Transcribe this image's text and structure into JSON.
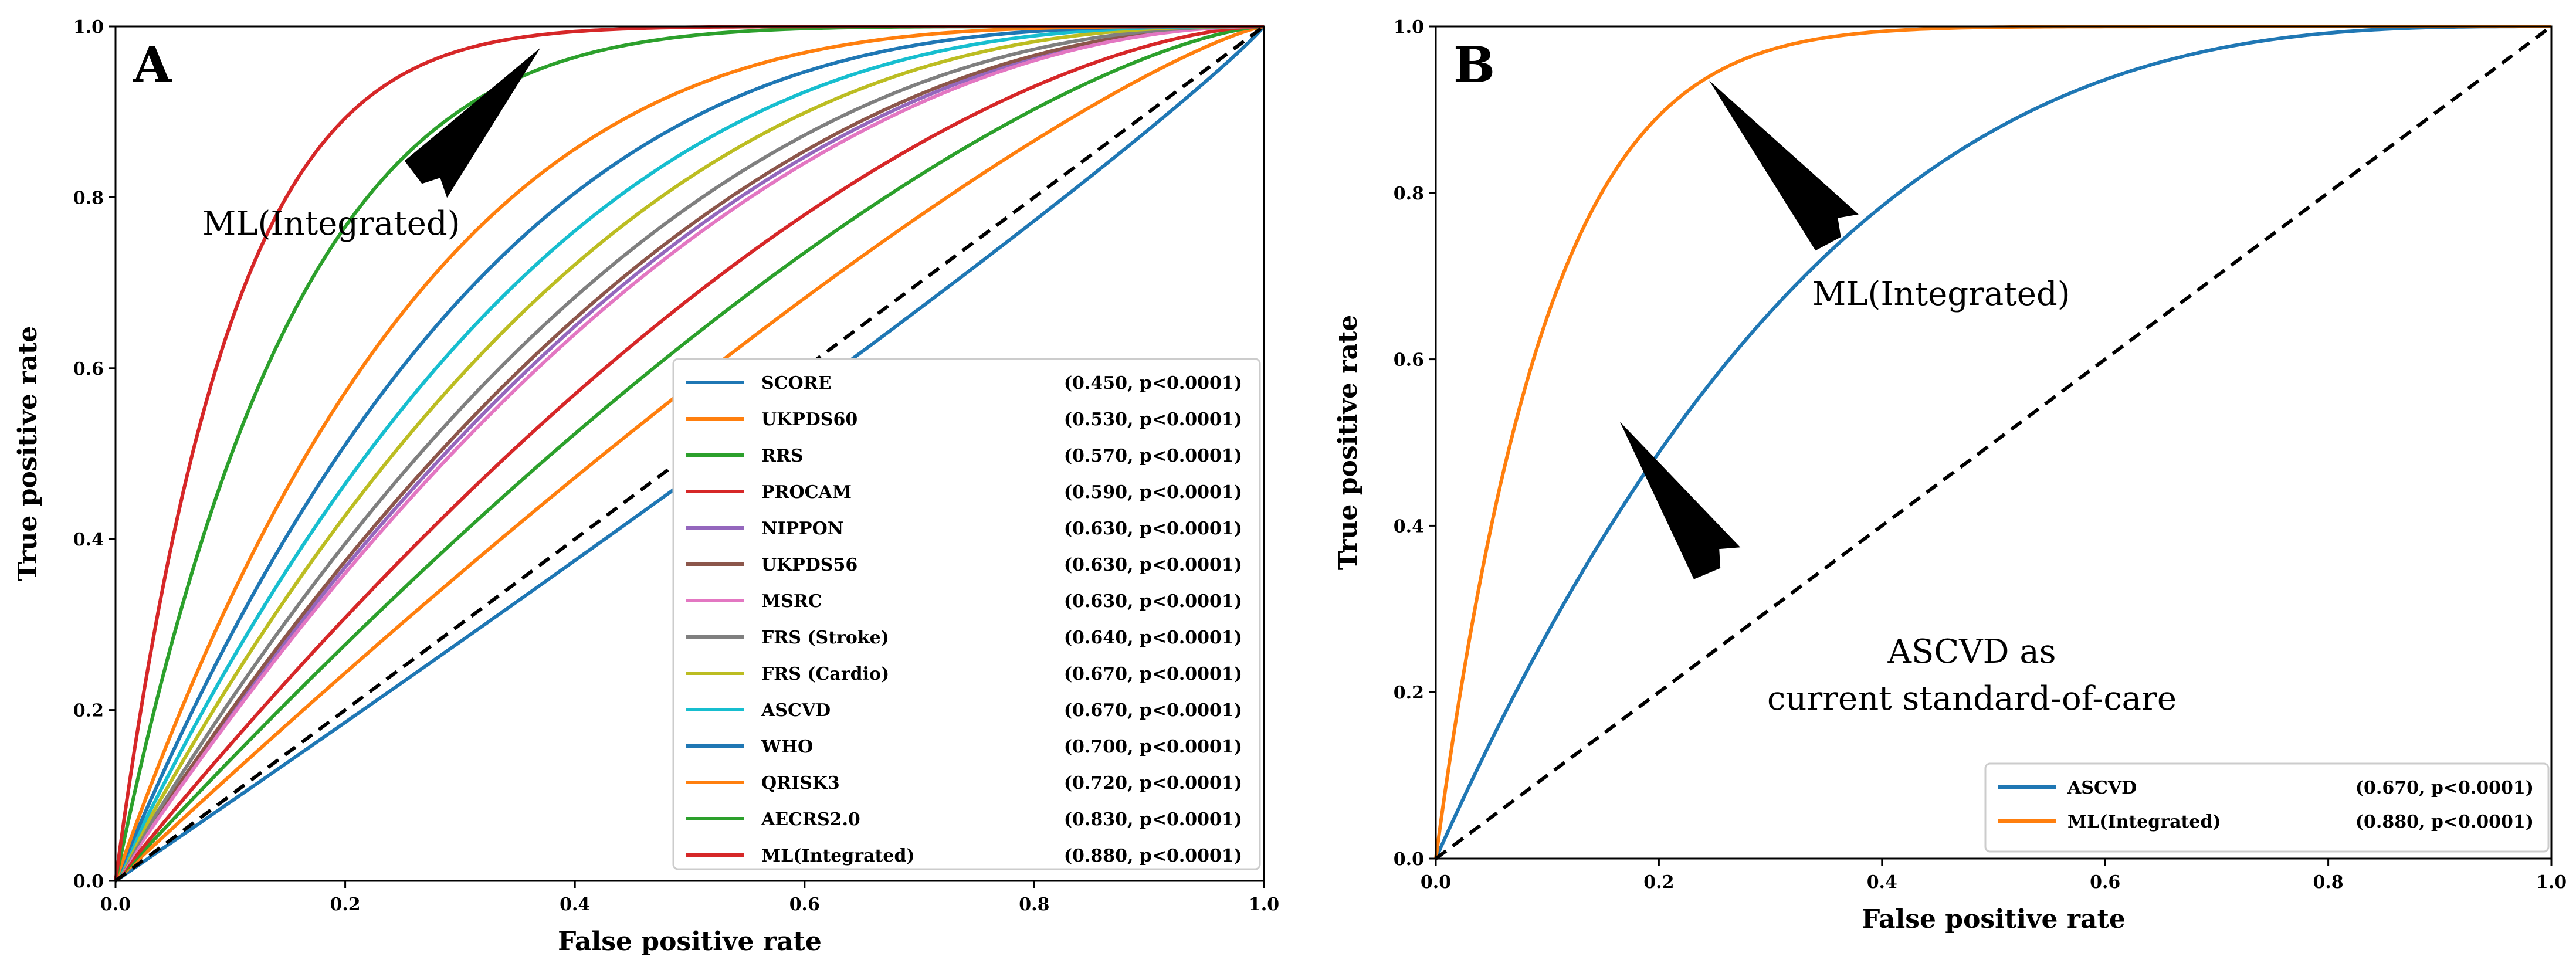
{
  "chart_data": [
    {
      "type": "line",
      "panel_label": "A",
      "xlabel": "False positive rate",
      "ylabel": "True positive rate",
      "xlim": [
        0,
        1
      ],
      "ylim": [
        0,
        1
      ],
      "x_ticks": [
        "0.0",
        "0.2",
        "0.4",
        "0.6",
        "0.8",
        "1.0"
      ],
      "y_ticks": [
        "0.0",
        "0.2",
        "0.4",
        "0.6",
        "0.8",
        "1.0"
      ],
      "grid": false,
      "legend_position": "lower-right",
      "diagonal": "dashed",
      "series": [
        {
          "name": "SCORE",
          "stat": "(0.450, p<0.0001)",
          "color": "#1f77b4",
          "shape": 0.92
        },
        {
          "name": "UKPDS60",
          "stat": "(0.530, p<0.0001)",
          "color": "#ff7f0e",
          "shape": 1.25
        },
        {
          "name": "RRS",
          "stat": "(0.570, p<0.0001)",
          "color": "#2ca02c",
          "shape": 1.45
        },
        {
          "name": "PROCAM",
          "stat": "(0.590, p<0.0001)",
          "color": "#d62728",
          "shape": 1.65
        },
        {
          "name": "NIPPON",
          "stat": "(0.630, p<0.0001)",
          "color": "#9467bd",
          "shape": 2.05
        },
        {
          "name": "UKPDS56",
          "stat": "(0.630, p<0.0001)",
          "color": "#8c564b",
          "shape": 2.1
        },
        {
          "name": "MSRC",
          "stat": "(0.630, p<0.0001)",
          "color": "#e377c2",
          "shape": 2.0
        },
        {
          "name": "FRS (Stroke)",
          "stat": "(0.640, p<0.0001)",
          "color": "#7f7f7f",
          "shape": 2.25
        },
        {
          "name": "FRS (Cardio)",
          "stat": "(0.670, p<0.0001)",
          "color": "#bcbd22",
          "shape": 2.5
        },
        {
          "name": "ASCVD",
          "stat": "(0.670, p<0.0001)",
          "color": "#17becf",
          "shape": 2.8
        },
        {
          "name": "WHO",
          "stat": "(0.700, p<0.0001)",
          "color": "#1f77b4",
          "shape": 3.2
        },
        {
          "name": "QRISK3",
          "stat": "(0.720, p<0.0001)",
          "color": "#ff7f0e",
          "shape": 3.8
        },
        {
          "name": "AECRS2.0",
          "stat": "(0.830, p<0.0001)",
          "color": "#2ca02c",
          "shape": 6.5
        },
        {
          "name": "ML(Integrated)",
          "stat": "(0.880, p<0.0001)",
          "color": "#d62728",
          "shape": 10.0
        }
      ],
      "annotations": [
        {
          "text": "ML(Integrated)",
          "target": [
            0.37,
            0.975
          ],
          "label_at": [
            0.25,
            0.79
          ]
        }
      ]
    },
    {
      "type": "line",
      "panel_label": "B",
      "xlabel": "False positive rate",
      "ylabel": "True positive rate",
      "xlim": [
        0,
        1
      ],
      "ylim": [
        0,
        1
      ],
      "x_ticks": [
        "0.0",
        "0.2",
        "0.4",
        "0.6",
        "0.8",
        "1.0"
      ],
      "y_ticks": [
        "0.0",
        "0.2",
        "0.4",
        "0.6",
        "0.8",
        "1.0"
      ],
      "grid": false,
      "legend_position": "lower-right",
      "diagonal": "dashed",
      "series": [
        {
          "name": "ASCVD",
          "stat": "(0.670, p<0.0001)",
          "color": "#1f77b4",
          "shape": 3.0
        },
        {
          "name": "ML(Integrated)",
          "stat": "(0.880, p<0.0001)",
          "color": "#ff7f0e",
          "shape": 10.0
        }
      ],
      "annotations": [
        {
          "text": "ML(Integrated)",
          "target": [
            0.245,
            0.935
          ],
          "label_at": [
            0.38,
            0.72
          ]
        },
        {
          "text": "ASCVD as",
          "text2": "current standard-of-care",
          "target": [
            0.165,
            0.525
          ],
          "label_at": [
            0.27,
            0.32
          ]
        }
      ]
    }
  ]
}
